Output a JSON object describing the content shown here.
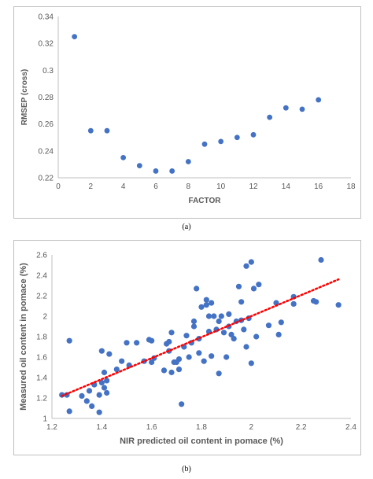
{
  "chart_data": [
    {
      "type": "scatter",
      "panel_caption": "(a)",
      "title": "",
      "xlabel": "FACTOR",
      "ylabel": "RMSEP (cross)",
      "xlim": [
        0,
        18
      ],
      "ylim": [
        0.22,
        0.34
      ],
      "xticks": [
        "0",
        "2",
        "4",
        "6",
        "8",
        "10",
        "12",
        "14",
        "16",
        "18"
      ],
      "yticks": [
        "0.22",
        "0.24",
        "0.26",
        "0.28",
        "0.3",
        "0.32",
        "0.34"
      ],
      "grid": false,
      "marker_color": "#4472c4",
      "points": [
        {
          "x": 1,
          "y": 0.325
        },
        {
          "x": 2,
          "y": 0.255
        },
        {
          "x": 3,
          "y": 0.255
        },
        {
          "x": 4,
          "y": 0.235
        },
        {
          "x": 5,
          "y": 0.229
        },
        {
          "x": 6,
          "y": 0.225
        },
        {
          "x": 7,
          "y": 0.225
        },
        {
          "x": 8,
          "y": 0.232
        },
        {
          "x": 9,
          "y": 0.245
        },
        {
          "x": 10,
          "y": 0.247
        },
        {
          "x": 11,
          "y": 0.25
        },
        {
          "x": 12,
          "y": 0.252
        },
        {
          "x": 13,
          "y": 0.265
        },
        {
          "x": 14,
          "y": 0.272
        },
        {
          "x": 15,
          "y": 0.271
        },
        {
          "x": 16,
          "y": 0.278
        }
      ]
    },
    {
      "type": "scatter",
      "panel_caption": "(b)",
      "title": "",
      "xlabel": "NIR predicted oil content in pomace (%)",
      "ylabel": "Measured oil content in pomace (%)",
      "xlim": [
        1.2,
        2.4
      ],
      "ylim": [
        1,
        2.6
      ],
      "xticks": [
        "1.2",
        "1.4",
        "1.6",
        "1.8",
        "2",
        "2.2",
        "2.4"
      ],
      "yticks": [
        "1",
        "1.2",
        "1.4",
        "1.6",
        "1.8",
        "2",
        "2.2",
        "2.4",
        "2.6"
      ],
      "grid": false,
      "marker_color": "#4472c4",
      "trendline": {
        "x": [
          1.24,
          2.35
        ],
        "y": [
          1.22,
          2.36
        ],
        "color": "#ff0000",
        "style": "dotted"
      },
      "points": [
        {
          "x": 1.24,
          "y": 1.23
        },
        {
          "x": 1.26,
          "y": 1.23
        },
        {
          "x": 1.27,
          "y": 1.07
        },
        {
          "x": 1.27,
          "y": 1.76
        },
        {
          "x": 1.32,
          "y": 1.22
        },
        {
          "x": 1.34,
          "y": 1.17
        },
        {
          "x": 1.35,
          "y": 1.27
        },
        {
          "x": 1.36,
          "y": 1.12
        },
        {
          "x": 1.37,
          "y": 1.33
        },
        {
          "x": 1.39,
          "y": 1.06
        },
        {
          "x": 1.39,
          "y": 1.23
        },
        {
          "x": 1.4,
          "y": 1.35
        },
        {
          "x": 1.4,
          "y": 1.66
        },
        {
          "x": 1.41,
          "y": 1.45
        },
        {
          "x": 1.41,
          "y": 1.3
        },
        {
          "x": 1.42,
          "y": 1.25
        },
        {
          "x": 1.42,
          "y": 1.37
        },
        {
          "x": 1.43,
          "y": 1.63
        },
        {
          "x": 1.46,
          "y": 1.48
        },
        {
          "x": 1.48,
          "y": 1.56
        },
        {
          "x": 1.5,
          "y": 1.74
        },
        {
          "x": 1.51,
          "y": 1.52
        },
        {
          "x": 1.54,
          "y": 1.74
        },
        {
          "x": 1.57,
          "y": 1.56
        },
        {
          "x": 1.59,
          "y": 1.77
        },
        {
          "x": 1.6,
          "y": 1.55
        },
        {
          "x": 1.6,
          "y": 1.76
        },
        {
          "x": 1.61,
          "y": 1.59
        },
        {
          "x": 1.65,
          "y": 1.47
        },
        {
          "x": 1.66,
          "y": 1.73
        },
        {
          "x": 1.67,
          "y": 1.66
        },
        {
          "x": 1.67,
          "y": 1.75
        },
        {
          "x": 1.68,
          "y": 1.84
        },
        {
          "x": 1.68,
          "y": 1.45
        },
        {
          "x": 1.69,
          "y": 1.55
        },
        {
          "x": 1.7,
          "y": 1.55
        },
        {
          "x": 1.71,
          "y": 1.58
        },
        {
          "x": 1.71,
          "y": 1.48
        },
        {
          "x": 1.72,
          "y": 1.14
        },
        {
          "x": 1.73,
          "y": 1.7
        },
        {
          "x": 1.74,
          "y": 1.81
        },
        {
          "x": 1.75,
          "y": 1.6
        },
        {
          "x": 1.76,
          "y": 1.74
        },
        {
          "x": 1.77,
          "y": 1.9
        },
        {
          "x": 1.77,
          "y": 1.95
        },
        {
          "x": 1.78,
          "y": 2.27
        },
        {
          "x": 1.79,
          "y": 1.64
        },
        {
          "x": 1.79,
          "y": 1.78
        },
        {
          "x": 1.8,
          "y": 2.09
        },
        {
          "x": 1.81,
          "y": 1.56
        },
        {
          "x": 1.82,
          "y": 2.16
        },
        {
          "x": 1.82,
          "y": 2.11
        },
        {
          "x": 1.83,
          "y": 1.85
        },
        {
          "x": 1.83,
          "y": 2.0
        },
        {
          "x": 1.84,
          "y": 1.61
        },
        {
          "x": 1.84,
          "y": 2.13
        },
        {
          "x": 1.85,
          "y": 2.0
        },
        {
          "x": 1.86,
          "y": 1.87
        },
        {
          "x": 1.87,
          "y": 1.44
        },
        {
          "x": 1.87,
          "y": 1.95
        },
        {
          "x": 1.88,
          "y": 2.0
        },
        {
          "x": 1.89,
          "y": 1.84
        },
        {
          "x": 1.9,
          "y": 1.6
        },
        {
          "x": 1.91,
          "y": 1.9
        },
        {
          "x": 1.91,
          "y": 2.02
        },
        {
          "x": 1.92,
          "y": 1.82
        },
        {
          "x": 1.93,
          "y": 1.78
        },
        {
          "x": 1.94,
          "y": 1.95
        },
        {
          "x": 1.95,
          "y": 2.29
        },
        {
          "x": 1.96,
          "y": 1.96
        },
        {
          "x": 1.96,
          "y": 2.14
        },
        {
          "x": 1.97,
          "y": 1.87
        },
        {
          "x": 1.98,
          "y": 1.7
        },
        {
          "x": 1.98,
          "y": 2.49
        },
        {
          "x": 1.99,
          "y": 1.98
        },
        {
          "x": 2.0,
          "y": 2.53
        },
        {
          "x": 2.0,
          "y": 1.54
        },
        {
          "x": 2.01,
          "y": 2.27
        },
        {
          "x": 2.02,
          "y": 1.8
        },
        {
          "x": 2.03,
          "y": 2.31
        },
        {
          "x": 2.07,
          "y": 1.91
        },
        {
          "x": 2.1,
          "y": 2.13
        },
        {
          "x": 2.11,
          "y": 1.82
        },
        {
          "x": 2.12,
          "y": 1.94
        },
        {
          "x": 2.17,
          "y": 2.12
        },
        {
          "x": 2.17,
          "y": 2.19
        },
        {
          "x": 2.25,
          "y": 2.15
        },
        {
          "x": 2.26,
          "y": 2.14
        },
        {
          "x": 2.28,
          "y": 2.55
        },
        {
          "x": 2.35,
          "y": 2.11
        }
      ]
    }
  ]
}
